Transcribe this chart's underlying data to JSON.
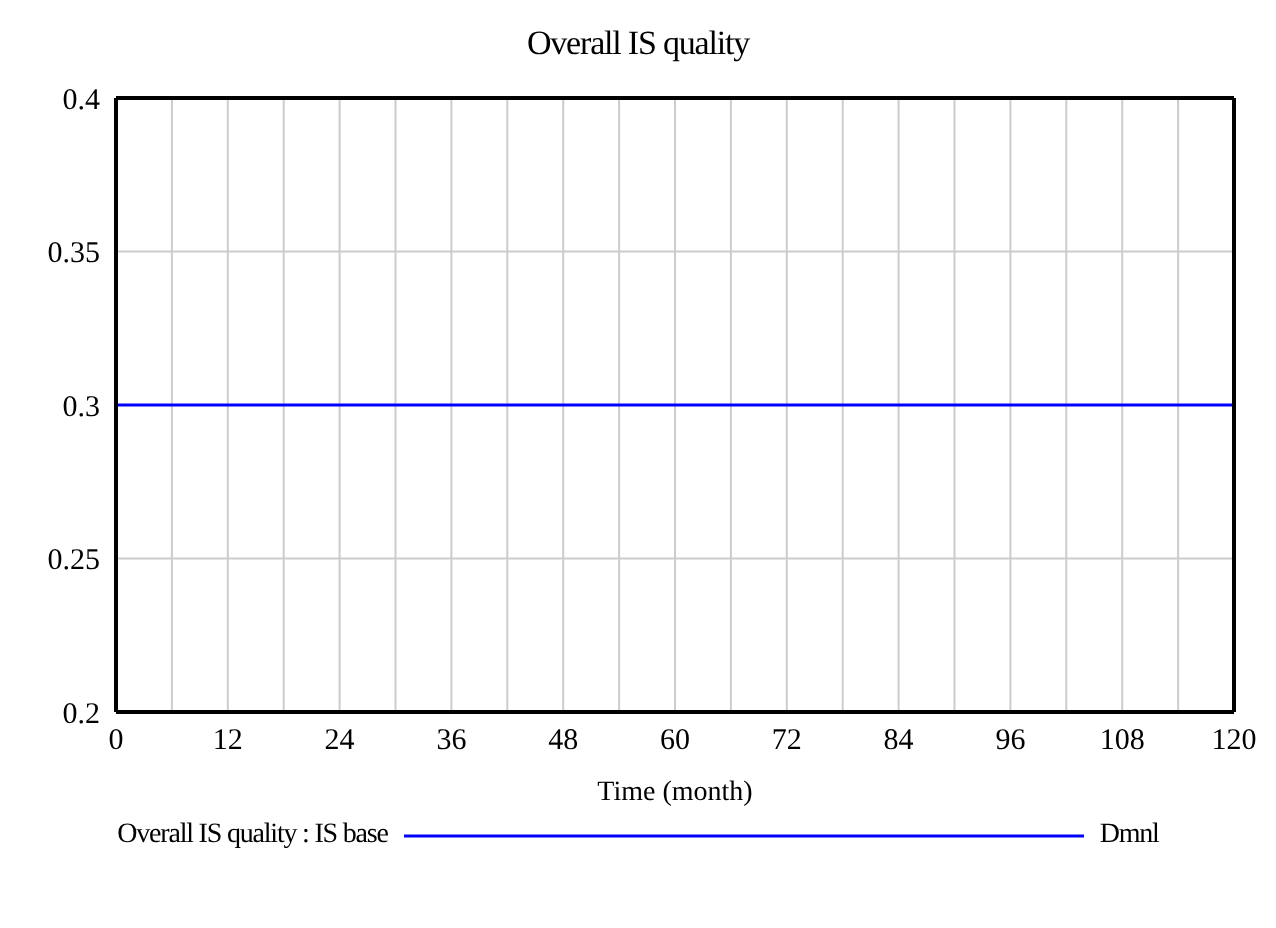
{
  "chart_data": {
    "type": "line",
    "title": "Overall IS quality",
    "xlabel": "Time (month)",
    "x": [
      0,
      120
    ],
    "series": [
      {
        "name": "Overall IS quality : IS base",
        "color": "#0000ff",
        "values": [
          0.3,
          0.3
        ]
      }
    ],
    "xlim": [
      0,
      120
    ],
    "xticks": [
      0,
      {
        "value": 6,
        "label": null
      },
      12,
      {
        "value": 18,
        "label": null
      },
      24,
      {
        "value": 30,
        "label": null
      },
      36,
      {
        "value": 42,
        "label": null
      },
      48,
      {
        "value": 54,
        "label": null
      },
      60,
      {
        "value": 66,
        "label": null
      },
      72,
      {
        "value": 78,
        "label": null
      },
      84,
      {
        "value": 90,
        "label": null
      },
      96,
      {
        "value": 102,
        "label": null
      },
      108,
      {
        "value": 114,
        "label": null
      },
      120
    ],
    "ylim": [
      0.2,
      0.4
    ],
    "yticks": [
      0.2,
      0.25,
      0.3,
      0.35,
      0.4
    ],
    "grid": true,
    "legend": "bottom",
    "annotations": [
      "Dmnl"
    ]
  }
}
